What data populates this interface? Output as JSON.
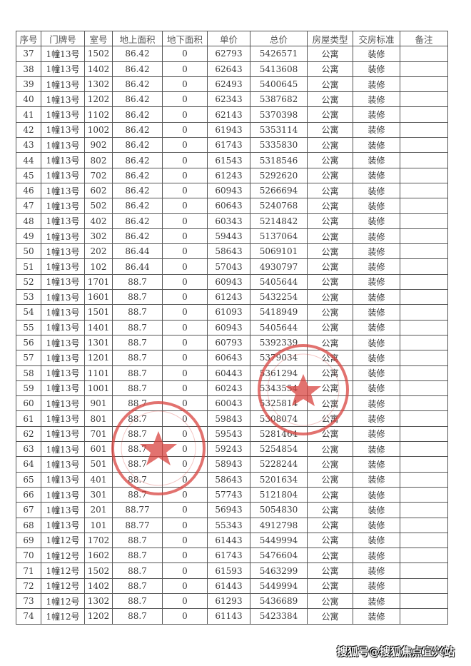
{
  "headers": [
    "序号",
    "门牌号",
    "室号",
    "地上面积",
    "地下面积",
    "单价",
    "总价",
    "房屋类型",
    "交房标准",
    "备注"
  ],
  "rows": [
    [
      "37",
      "1幢13号",
      "1502",
      "86.42",
      "0",
      "62793",
      "5426571",
      "公寓",
      "装修",
      ""
    ],
    [
      "38",
      "1幢13号",
      "1402",
      "86.42",
      "0",
      "62643",
      "5413608",
      "公寓",
      "装修",
      ""
    ],
    [
      "39",
      "1幢13号",
      "1302",
      "86.42",
      "0",
      "62493",
      "5400645",
      "公寓",
      "装修",
      ""
    ],
    [
      "40",
      "1幢13号",
      "1202",
      "86.42",
      "0",
      "62343",
      "5387682",
      "公寓",
      "装修",
      ""
    ],
    [
      "41",
      "1幢13号",
      "1102",
      "86.42",
      "0",
      "62143",
      "5370398",
      "公寓",
      "装修",
      ""
    ],
    [
      "42",
      "1幢13号",
      "1002",
      "86.42",
      "0",
      "61943",
      "5353114",
      "公寓",
      "装修",
      ""
    ],
    [
      "43",
      "1幢13号",
      "902",
      "86.42",
      "0",
      "61743",
      "5335830",
      "公寓",
      "装修",
      ""
    ],
    [
      "44",
      "1幢13号",
      "802",
      "86.42",
      "0",
      "61543",
      "5318546",
      "公寓",
      "装修",
      ""
    ],
    [
      "45",
      "1幢13号",
      "702",
      "86.42",
      "0",
      "61243",
      "5292620",
      "公寓",
      "装修",
      ""
    ],
    [
      "46",
      "1幢13号",
      "602",
      "86.42",
      "0",
      "60943",
      "5266694",
      "公寓",
      "装修",
      ""
    ],
    [
      "47",
      "1幢13号",
      "502",
      "86.42",
      "0",
      "60643",
      "5240768",
      "公寓",
      "装修",
      ""
    ],
    [
      "48",
      "1幢13号",
      "402",
      "86.42",
      "0",
      "60343",
      "5214842",
      "公寓",
      "装修",
      ""
    ],
    [
      "49",
      "1幢13号",
      "302",
      "86.42",
      "0",
      "59443",
      "5137064",
      "公寓",
      "装修",
      ""
    ],
    [
      "50",
      "1幢13号",
      "202",
      "86.44",
      "0",
      "58643",
      "5069101",
      "公寓",
      "装修",
      ""
    ],
    [
      "51",
      "1幢13号",
      "102",
      "86.44",
      "0",
      "57043",
      "4930797",
      "公寓",
      "装修",
      ""
    ],
    [
      "52",
      "1幢13号",
      "1701",
      "88.7",
      "0",
      "60943",
      "5405644",
      "公寓",
      "装修",
      ""
    ],
    [
      "53",
      "1幢13号",
      "1601",
      "88.7",
      "0",
      "61243",
      "5432254",
      "公寓",
      "装修",
      ""
    ],
    [
      "54",
      "1幢13号",
      "1501",
      "88.7",
      "0",
      "61093",
      "5418949",
      "公寓",
      "装修",
      ""
    ],
    [
      "55",
      "1幢13号",
      "1401",
      "88.7",
      "0",
      "60943",
      "5405644",
      "公寓",
      "装修",
      ""
    ],
    [
      "56",
      "1幢13号",
      "1301",
      "88.7",
      "0",
      "60793",
      "5392339",
      "公寓",
      "装修",
      ""
    ],
    [
      "57",
      "1幢13号",
      "1201",
      "88.7",
      "0",
      "60643",
      "5379034",
      "公寓",
      "装修",
      ""
    ],
    [
      "58",
      "1幢13号",
      "1101",
      "88.7",
      "0",
      "60443",
      "5361294",
      "公寓",
      "装修",
      ""
    ],
    [
      "59",
      "1幢13号",
      "1001",
      "88.7",
      "0",
      "60243",
      "5343554",
      "公寓",
      "装修",
      ""
    ],
    [
      "60",
      "1幢13号",
      "901",
      "88.7",
      "0",
      "60043",
      "5325814",
      "公寓",
      "装修",
      ""
    ],
    [
      "61",
      "1幢13号",
      "801",
      "88.7",
      "0",
      "59843",
      "5308074",
      "公寓",
      "装修",
      ""
    ],
    [
      "62",
      "1幢13号",
      "701",
      "88.7",
      "0",
      "59543",
      "5281464",
      "公寓",
      "装修",
      ""
    ],
    [
      "63",
      "1幢13号",
      "601",
      "88.7",
      "0",
      "59243",
      "5254854",
      "公寓",
      "装修",
      ""
    ],
    [
      "64",
      "1幢13号",
      "501",
      "88.7",
      "0",
      "58943",
      "5228244",
      "公寓",
      "装修",
      ""
    ],
    [
      "65",
      "1幢13号",
      "401",
      "88.7",
      "0",
      "58643",
      "5201634",
      "公寓",
      "装修",
      ""
    ],
    [
      "66",
      "1幢13号",
      "301",
      "88.7",
      "0",
      "57743",
      "5121804",
      "公寓",
      "装修",
      ""
    ],
    [
      "67",
      "1幢13号",
      "201",
      "88.77",
      "0",
      "56943",
      "5054830",
      "公寓",
      "装修",
      ""
    ],
    [
      "68",
      "1幢13号",
      "101",
      "88.77",
      "0",
      "55343",
      "4912798",
      "公寓",
      "装修",
      ""
    ],
    [
      "69",
      "1幢12号",
      "1702",
      "88.7",
      "0",
      "61443",
      "5449994",
      "公寓",
      "装修",
      ""
    ],
    [
      "70",
      "1幢12号",
      "1602",
      "88.7",
      "0",
      "61743",
      "5476604",
      "公寓",
      "装修",
      ""
    ],
    [
      "71",
      "1幢12号",
      "1502",
      "88.7",
      "0",
      "61593",
      "5463299",
      "公寓",
      "装修",
      ""
    ],
    [
      "72",
      "1幢12号",
      "1402",
      "88.7",
      "0",
      "61443",
      "5449994",
      "公寓",
      "装修",
      ""
    ],
    [
      "73",
      "1幢12号",
      "1302",
      "88.7",
      "0",
      "61293",
      "5436689",
      "公寓",
      "装修",
      ""
    ],
    [
      "74",
      "1幢12号",
      "1202",
      "88.7",
      "0",
      "61143",
      "5423384",
      "公寓",
      "装修",
      ""
    ]
  ],
  "stamp_color": "#d9443f",
  "watermark": "搜狐号@搜狐焦点宜兴站"
}
